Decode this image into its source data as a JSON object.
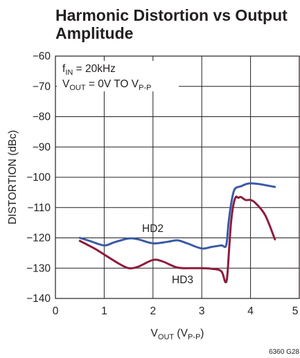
{
  "chart_data": {
    "type": "line",
    "title_line1": "Harmonic Distortion vs Output",
    "title_line2": "Amplitude",
    "xlabel": {
      "main": "V",
      "sub": "OUT",
      "rest1": " (V",
      "sub2": "P-P",
      "rest2": ")"
    },
    "ylabel": "DISTORTION (dBc)",
    "xlim": [
      0,
      5
    ],
    "ylim": [
      -140,
      -60
    ],
    "xticks": [
      "0",
      "1",
      "2",
      "3",
      "4",
      "5"
    ],
    "yticks": [
      "−60",
      "−70",
      "−80",
      "−90",
      "−100",
      "−110",
      "−120",
      "−130",
      "−140"
    ],
    "grid": true,
    "annotation": {
      "line1_main": "f",
      "line1_sub": "IN",
      "line1_rest": " = 20kHz",
      "line2_main": "V",
      "line2_sub": "OUT",
      "line2_rest": " = 0V TO V",
      "line2_sub2": "P-P"
    },
    "figure_code": "6360 G28",
    "series": [
      {
        "name": "HD2",
        "color": "#3a5aa5",
        "x": [
          0.5,
          0.7,
          1.0,
          1.2,
          1.5,
          1.7,
          2.0,
          2.3,
          2.5,
          2.7,
          3.0,
          3.2,
          3.4,
          3.5,
          3.55,
          3.6,
          3.65,
          3.7,
          3.8,
          3.9,
          4.0,
          4.2,
          4.5
        ],
        "y": [
          -120,
          -121,
          -122.5,
          -121.5,
          -120.2,
          -120.5,
          -121.8,
          -121.3,
          -120.8,
          -121.8,
          -123.5,
          -123,
          -122.5,
          -122.5,
          -115,
          -109,
          -105,
          -103.5,
          -103,
          -102.3,
          -102,
          -102.3,
          -103.2
        ]
      },
      {
        "name": "HD3",
        "color": "#8c1c3c",
        "x": [
          0.5,
          0.8,
          1.0,
          1.3,
          1.5,
          1.7,
          2.0,
          2.2,
          2.5,
          2.8,
          3.0,
          3.2,
          3.4,
          3.48,
          3.52,
          3.56,
          3.6,
          3.65,
          3.7,
          3.75,
          3.8,
          3.9,
          4.0,
          4.1,
          4.3,
          4.5
        ],
        "y": [
          -121,
          -123.5,
          -125.5,
          -128.5,
          -130,
          -129.5,
          -127.3,
          -127.8,
          -129.8,
          -130,
          -130,
          -130.2,
          -131,
          -134.5,
          -133,
          -124,
          -115,
          -109,
          -106.5,
          -106.8,
          -106.5,
          -107.5,
          -107.5,
          -108.5,
          -112.5,
          -120.5
        ]
      }
    ],
    "series_labels": [
      "HD2",
      "HD3"
    ]
  }
}
